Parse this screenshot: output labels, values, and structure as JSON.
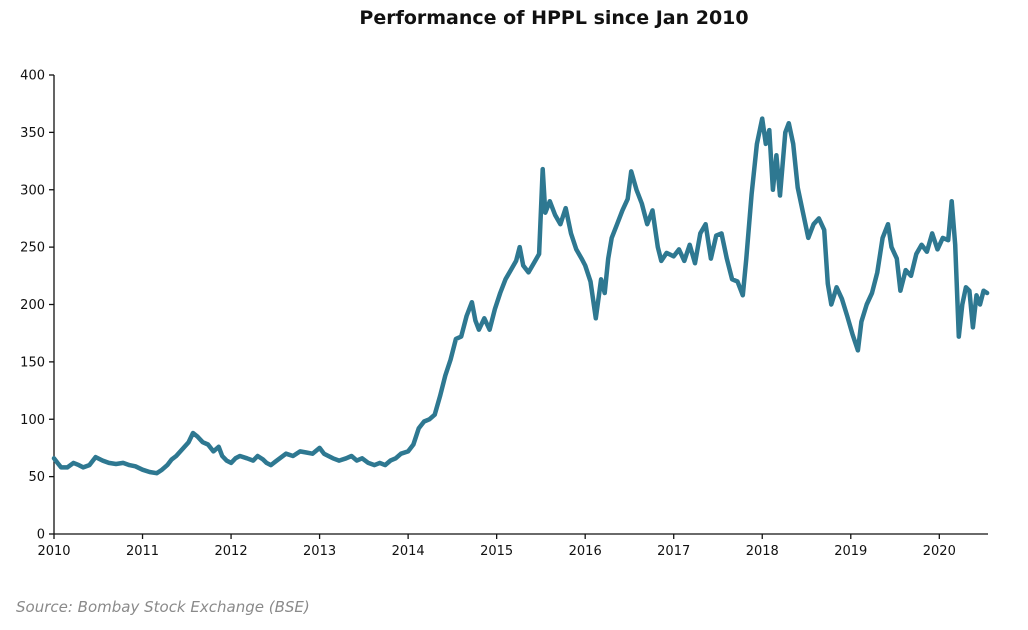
{
  "chart_data": {
    "type": "line",
    "title": "Performance of HPPL since Jan 2010",
    "xlabel": "",
    "ylabel": "",
    "source": "Source: Bombay Stock Exchange (BSE)",
    "xlim": [
      2010,
      2020.55
    ],
    "ylim": [
      0,
      400
    ],
    "x_ticks": [
      "2010",
      "2011",
      "2012",
      "2013",
      "2014",
      "2015",
      "2016",
      "2017",
      "2018",
      "2019",
      "2020"
    ],
    "y_ticks": [
      "0",
      "50",
      "100",
      "150",
      "200",
      "250",
      "300",
      "350",
      "400"
    ],
    "grid": false,
    "line_color": "#2e7891",
    "series": [
      {
        "values_by_year": [
          [
            2010.0,
            66
          ],
          [
            2010.04,
            62
          ],
          [
            2010.08,
            58
          ],
          [
            2010.15,
            58
          ],
          [
            2010.22,
            62
          ],
          [
            2010.28,
            60
          ],
          [
            2010.33,
            58
          ],
          [
            2010.4,
            60
          ],
          [
            2010.47,
            67
          ],
          [
            2010.55,
            64
          ],
          [
            2010.62,
            62
          ],
          [
            2010.7,
            61
          ],
          [
            2010.78,
            62
          ],
          [
            2010.85,
            60
          ],
          [
            2010.92,
            59
          ],
          [
            2011.0,
            56
          ],
          [
            2011.08,
            54
          ],
          [
            2011.16,
            53
          ],
          [
            2011.22,
            56
          ],
          [
            2011.28,
            60
          ],
          [
            2011.33,
            65
          ],
          [
            2011.38,
            68
          ],
          [
            2011.45,
            74
          ],
          [
            2011.52,
            80
          ],
          [
            2011.57,
            88
          ],
          [
            2011.62,
            85
          ],
          [
            2011.68,
            80
          ],
          [
            2011.74,
            78
          ],
          [
            2011.8,
            72
          ],
          [
            2011.86,
            76
          ],
          [
            2011.9,
            68
          ],
          [
            2011.95,
            64
          ],
          [
            2012.0,
            62
          ],
          [
            2012.05,
            66
          ],
          [
            2012.1,
            68
          ],
          [
            2012.18,
            66
          ],
          [
            2012.25,
            64
          ],
          [
            2012.3,
            68
          ],
          [
            2012.36,
            65
          ],
          [
            2012.4,
            62
          ],
          [
            2012.45,
            60
          ],
          [
            2012.5,
            63
          ],
          [
            2012.55,
            66
          ],
          [
            2012.62,
            70
          ],
          [
            2012.7,
            68
          ],
          [
            2012.78,
            72
          ],
          [
            2012.85,
            71
          ],
          [
            2012.92,
            70
          ],
          [
            2013.0,
            75
          ],
          [
            2013.05,
            70
          ],
          [
            2013.1,
            68
          ],
          [
            2013.15,
            66
          ],
          [
            2013.22,
            64
          ],
          [
            2013.3,
            66
          ],
          [
            2013.36,
            68
          ],
          [
            2013.42,
            64
          ],
          [
            2013.48,
            66
          ],
          [
            2013.55,
            62
          ],
          [
            2013.62,
            60
          ],
          [
            2013.68,
            62
          ],
          [
            2013.74,
            60
          ],
          [
            2013.8,
            64
          ],
          [
            2013.86,
            66
          ],
          [
            2013.92,
            70
          ],
          [
            2014.0,
            72
          ],
          [
            2014.06,
            78
          ],
          [
            2014.12,
            92
          ],
          [
            2014.18,
            98
          ],
          [
            2014.24,
            100
          ],
          [
            2014.3,
            104
          ],
          [
            2014.36,
            120
          ],
          [
            2014.42,
            138
          ],
          [
            2014.48,
            152
          ],
          [
            2014.54,
            170
          ],
          [
            2014.6,
            172
          ],
          [
            2014.66,
            190
          ],
          [
            2014.72,
            202
          ],
          [
            2014.76,
            186
          ],
          [
            2014.8,
            178
          ],
          [
            2014.86,
            188
          ],
          [
            2014.92,
            178
          ],
          [
            2014.98,
            196
          ],
          [
            2015.04,
            210
          ],
          [
            2015.1,
            222
          ],
          [
            2015.16,
            230
          ],
          [
            2015.22,
            238
          ],
          [
            2015.26,
            250
          ],
          [
            2015.3,
            234
          ],
          [
            2015.36,
            228
          ],
          [
            2015.42,
            236
          ],
          [
            2015.48,
            244
          ],
          [
            2015.52,
            318
          ],
          [
            2015.55,
            280
          ],
          [
            2015.6,
            290
          ],
          [
            2015.66,
            278
          ],
          [
            2015.72,
            270
          ],
          [
            2015.78,
            284
          ],
          [
            2015.84,
            262
          ],
          [
            2015.9,
            248
          ],
          [
            2015.96,
            240
          ],
          [
            2016.0,
            234
          ],
          [
            2016.06,
            220
          ],
          [
            2016.12,
            188
          ],
          [
            2016.18,
            222
          ],
          [
            2016.22,
            210
          ],
          [
            2016.26,
            240
          ],
          [
            2016.3,
            258
          ],
          [
            2016.36,
            270
          ],
          [
            2016.42,
            282
          ],
          [
            2016.48,
            292
          ],
          [
            2016.52,
            316
          ],
          [
            2016.58,
            300
          ],
          [
            2016.64,
            288
          ],
          [
            2016.7,
            270
          ],
          [
            2016.76,
            282
          ],
          [
            2016.82,
            250
          ],
          [
            2016.86,
            238
          ],
          [
            2016.92,
            245
          ],
          [
            2017.0,
            242
          ],
          [
            2017.06,
            248
          ],
          [
            2017.12,
            238
          ],
          [
            2017.18,
            252
          ],
          [
            2017.24,
            236
          ],
          [
            2017.3,
            262
          ],
          [
            2017.36,
            270
          ],
          [
            2017.42,
            240
          ],
          [
            2017.48,
            260
          ],
          [
            2017.54,
            262
          ],
          [
            2017.6,
            240
          ],
          [
            2017.66,
            222
          ],
          [
            2017.72,
            220
          ],
          [
            2017.78,
            208
          ],
          [
            2017.82,
            240
          ],
          [
            2017.88,
            296
          ],
          [
            2017.94,
            340
          ],
          [
            2018.0,
            362
          ],
          [
            2018.04,
            340
          ],
          [
            2018.08,
            352
          ],
          [
            2018.12,
            300
          ],
          [
            2018.16,
            330
          ],
          [
            2018.2,
            295
          ],
          [
            2018.26,
            350
          ],
          [
            2018.3,
            358
          ],
          [
            2018.35,
            340
          ],
          [
            2018.4,
            302
          ],
          [
            2018.46,
            280
          ],
          [
            2018.52,
            258
          ],
          [
            2018.58,
            270
          ],
          [
            2018.64,
            275
          ],
          [
            2018.7,
            265
          ],
          [
            2018.74,
            218
          ],
          [
            2018.78,
            200
          ],
          [
            2018.84,
            215
          ],
          [
            2018.9,
            205
          ],
          [
            2018.96,
            190
          ],
          [
            2019.02,
            174
          ],
          [
            2019.08,
            160
          ],
          [
            2019.12,
            185
          ],
          [
            2019.18,
            200
          ],
          [
            2019.24,
            210
          ],
          [
            2019.3,
            228
          ],
          [
            2019.36,
            258
          ],
          [
            2019.42,
            270
          ],
          [
            2019.46,
            250
          ],
          [
            2019.52,
            240
          ],
          [
            2019.56,
            212
          ],
          [
            2019.62,
            230
          ],
          [
            2019.68,
            225
          ],
          [
            2019.74,
            244
          ],
          [
            2019.8,
            252
          ],
          [
            2019.86,
            246
          ],
          [
            2019.92,
            262
          ],
          [
            2019.98,
            248
          ],
          [
            2020.04,
            258
          ],
          [
            2020.1,
            256
          ],
          [
            2020.14,
            290
          ],
          [
            2020.18,
            252
          ],
          [
            2020.22,
            172
          ],
          [
            2020.26,
            200
          ],
          [
            2020.3,
            215
          ],
          [
            2020.34,
            212
          ],
          [
            2020.38,
            180
          ],
          [
            2020.42,
            208
          ],
          [
            2020.46,
            200
          ],
          [
            2020.5,
            212
          ],
          [
            2020.54,
            210
          ]
        ]
      }
    ]
  }
}
